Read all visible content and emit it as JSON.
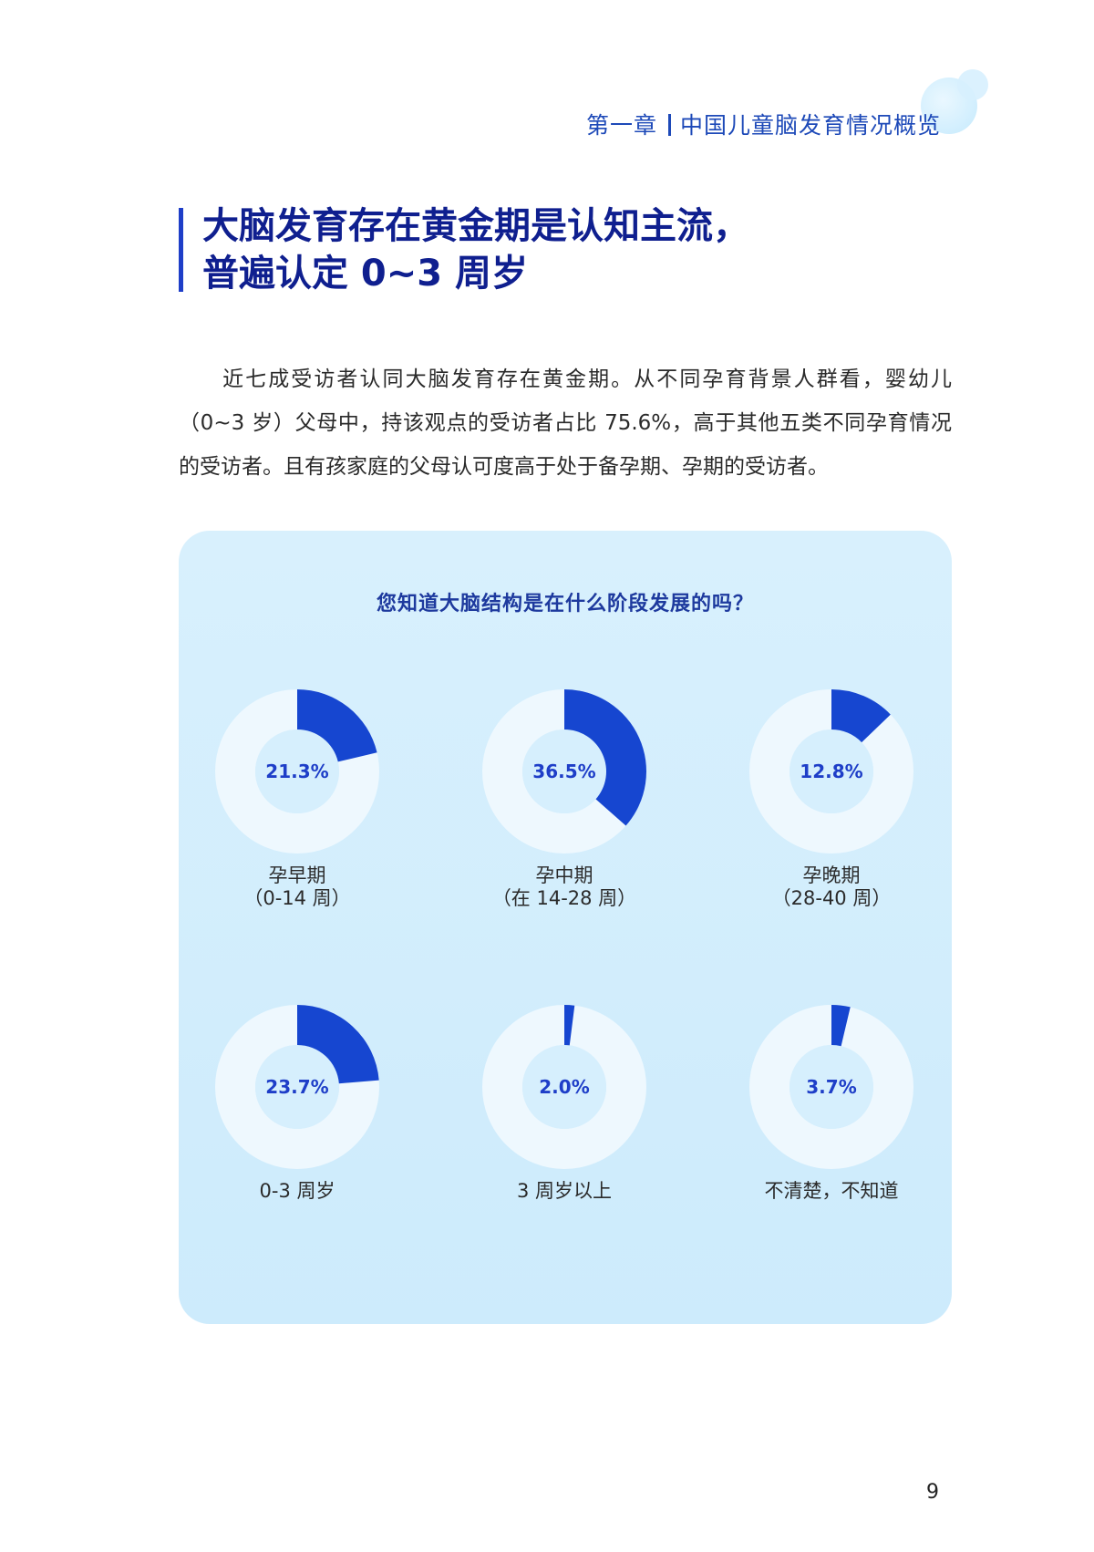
{
  "header": {
    "chapter": "第一章",
    "chapter_title": "中国儿童脑发育情况概览"
  },
  "section": {
    "title_line1": "大脑发育存在黄金期是认知主流，",
    "title_line2": "普遍认定 0~3 周岁"
  },
  "intro": {
    "text": "近七成受访者认同大脑发育存在黄金期。从不同孕育背景人群看，婴幼儿（0~3 岁）父母中，持该观点的受访者占比 75.6%，高于其他五类不同孕育情况的受访者。且有孩家庭的父母认可度高于处于备孕期、孕期的受访者。"
  },
  "chart": {
    "question": "您知道大脑结构是在什么阶段发展的吗？"
  },
  "chart_data": {
    "type": "pie",
    "title": "您知道大脑结构是在什么阶段发展的吗？",
    "series": [
      {
        "label": "孕早期\n（0-14 周）",
        "value": 21.3,
        "display": "21.3%"
      },
      {
        "label": "孕中期\n（在 14-28 周）",
        "value": 36.5,
        "display": "36.5%"
      },
      {
        "label": "孕晚期\n（28-40 周）",
        "value": 12.8,
        "display": "12.8%"
      },
      {
        "label": "0-3 周岁",
        "value": 23.7,
        "display": "23.7%"
      },
      {
        "label": "3 周岁以上",
        "value": 2.0,
        "display": "2.0%"
      },
      {
        "label": "不清楚，不知道",
        "value": 3.7,
        "display": "3.7%"
      }
    ],
    "colors": {
      "fill": "#1646d0",
      "track": "#eef8fe"
    }
  },
  "footer": {
    "page_number": "9"
  }
}
